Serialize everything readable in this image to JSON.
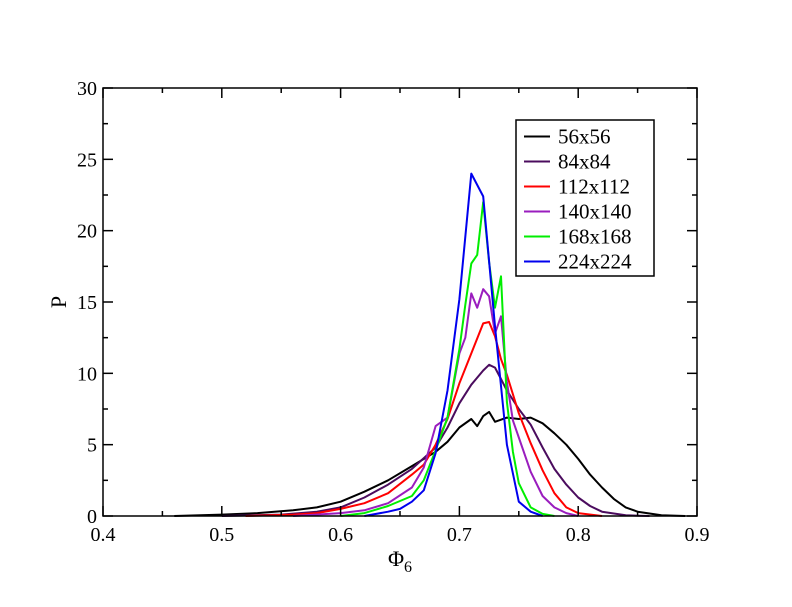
{
  "chart_data": {
    "type": "line",
    "title": "",
    "xlabel": "Φ",
    "xlabel_subscript": "6",
    "ylabel": "P",
    "xlim": [
      0.4,
      0.9
    ],
    "ylim": [
      0,
      30
    ],
    "xticks": [
      0.4,
      0.5,
      0.6,
      0.7,
      0.8,
      0.9
    ],
    "xtick_labels": [
      "0.4",
      "0.5",
      "0.6",
      "0.7",
      "0.8",
      "0.9"
    ],
    "yticks": [
      0,
      5,
      10,
      15,
      20,
      25,
      30
    ],
    "ytick_labels": [
      "0",
      "5",
      "10",
      "15",
      "20",
      "25",
      "30"
    ],
    "grid": false,
    "legend_position": "top-right",
    "series": [
      {
        "name": "56x56",
        "color": "#000000",
        "x": [
          0.46,
          0.5,
          0.53,
          0.56,
          0.58,
          0.6,
          0.62,
          0.64,
          0.66,
          0.68,
          0.69,
          0.7,
          0.71,
          0.715,
          0.72,
          0.725,
          0.73,
          0.74,
          0.75,
          0.76,
          0.77,
          0.78,
          0.79,
          0.8,
          0.81,
          0.82,
          0.83,
          0.84,
          0.85,
          0.87,
          0.89
        ],
        "y": [
          0,
          0.1,
          0.2,
          0.4,
          0.6,
          1.0,
          1.7,
          2.5,
          3.5,
          4.5,
          5.2,
          6.2,
          6.8,
          6.3,
          7.0,
          7.3,
          6.6,
          6.9,
          6.8,
          6.9,
          6.5,
          5.8,
          5.0,
          4.0,
          2.9,
          2.0,
          1.2,
          0.6,
          0.3,
          0.05,
          0
        ]
      },
      {
        "name": "84x84",
        "color": "#4b0c5e",
        "x": [
          0.5,
          0.55,
          0.58,
          0.6,
          0.62,
          0.64,
          0.66,
          0.68,
          0.69,
          0.7,
          0.71,
          0.72,
          0.725,
          0.73,
          0.735,
          0.74,
          0.75,
          0.76,
          0.77,
          0.78,
          0.79,
          0.8,
          0.81,
          0.82,
          0.84,
          0.86
        ],
        "y": [
          0,
          0.1,
          0.3,
          0.6,
          1.3,
          2.2,
          3.3,
          4.8,
          6.2,
          7.9,
          9.2,
          10.2,
          10.6,
          10.4,
          9.6,
          8.8,
          7.5,
          6.4,
          4.8,
          3.3,
          2.2,
          1.3,
          0.7,
          0.3,
          0.05,
          0
        ]
      },
      {
        "name": "112x112",
        "color": "#ff0000",
        "x": [
          0.52,
          0.56,
          0.58,
          0.6,
          0.62,
          0.64,
          0.66,
          0.67,
          0.68,
          0.69,
          0.7,
          0.71,
          0.72,
          0.725,
          0.73,
          0.735,
          0.74,
          0.75,
          0.76,
          0.77,
          0.78,
          0.79,
          0.8,
          0.82
        ],
        "y": [
          0,
          0.1,
          0.2,
          0.5,
          0.9,
          1.6,
          2.9,
          3.6,
          5.0,
          6.8,
          9.3,
          11.4,
          13.5,
          13.6,
          12.6,
          11.0,
          9.9,
          7.2,
          5.1,
          3.2,
          1.6,
          0.6,
          0.2,
          0
        ]
      },
      {
        "name": "140x140",
        "color": "#9a1dbe",
        "x": [
          0.56,
          0.6,
          0.62,
          0.64,
          0.66,
          0.67,
          0.68,
          0.69,
          0.7,
          0.705,
          0.71,
          0.715,
          0.72,
          0.725,
          0.73,
          0.735,
          0.74,
          0.745,
          0.75,
          0.76,
          0.77,
          0.78,
          0.79,
          0.8
        ],
        "y": [
          0,
          0.2,
          0.4,
          0.9,
          2.0,
          3.4,
          6.3,
          6.9,
          11.4,
          12.5,
          15.6,
          14.6,
          15.9,
          15.4,
          12.8,
          14.0,
          9.4,
          6.7,
          5.5,
          3.1,
          1.4,
          0.6,
          0.2,
          0
        ]
      },
      {
        "name": "168x168",
        "color": "#00ee00",
        "x": [
          0.6,
          0.62,
          0.64,
          0.66,
          0.67,
          0.68,
          0.69,
          0.7,
          0.705,
          0.71,
          0.715,
          0.72,
          0.725,
          0.73,
          0.735,
          0.74,
          0.745,
          0.75,
          0.76,
          0.77,
          0.78
        ],
        "y": [
          0,
          0.2,
          0.7,
          1.4,
          2.5,
          4.6,
          6.9,
          11.7,
          14.8,
          17.7,
          18.3,
          22.0,
          17.8,
          14.6,
          16.8,
          8.0,
          4.5,
          2.3,
          0.6,
          0.15,
          0
        ]
      },
      {
        "name": "224x224",
        "color": "#0000ee",
        "x": [
          0.62,
          0.64,
          0.65,
          0.66,
          0.67,
          0.68,
          0.69,
          0.7,
          0.71,
          0.72,
          0.73,
          0.74,
          0.75,
          0.76,
          0.77
        ],
        "y": [
          0,
          0.3,
          0.5,
          1.0,
          1.8,
          4.4,
          8.8,
          15.2,
          24.0,
          22.4,
          13.3,
          5.0,
          1.0,
          0.3,
          0
        ]
      }
    ]
  }
}
